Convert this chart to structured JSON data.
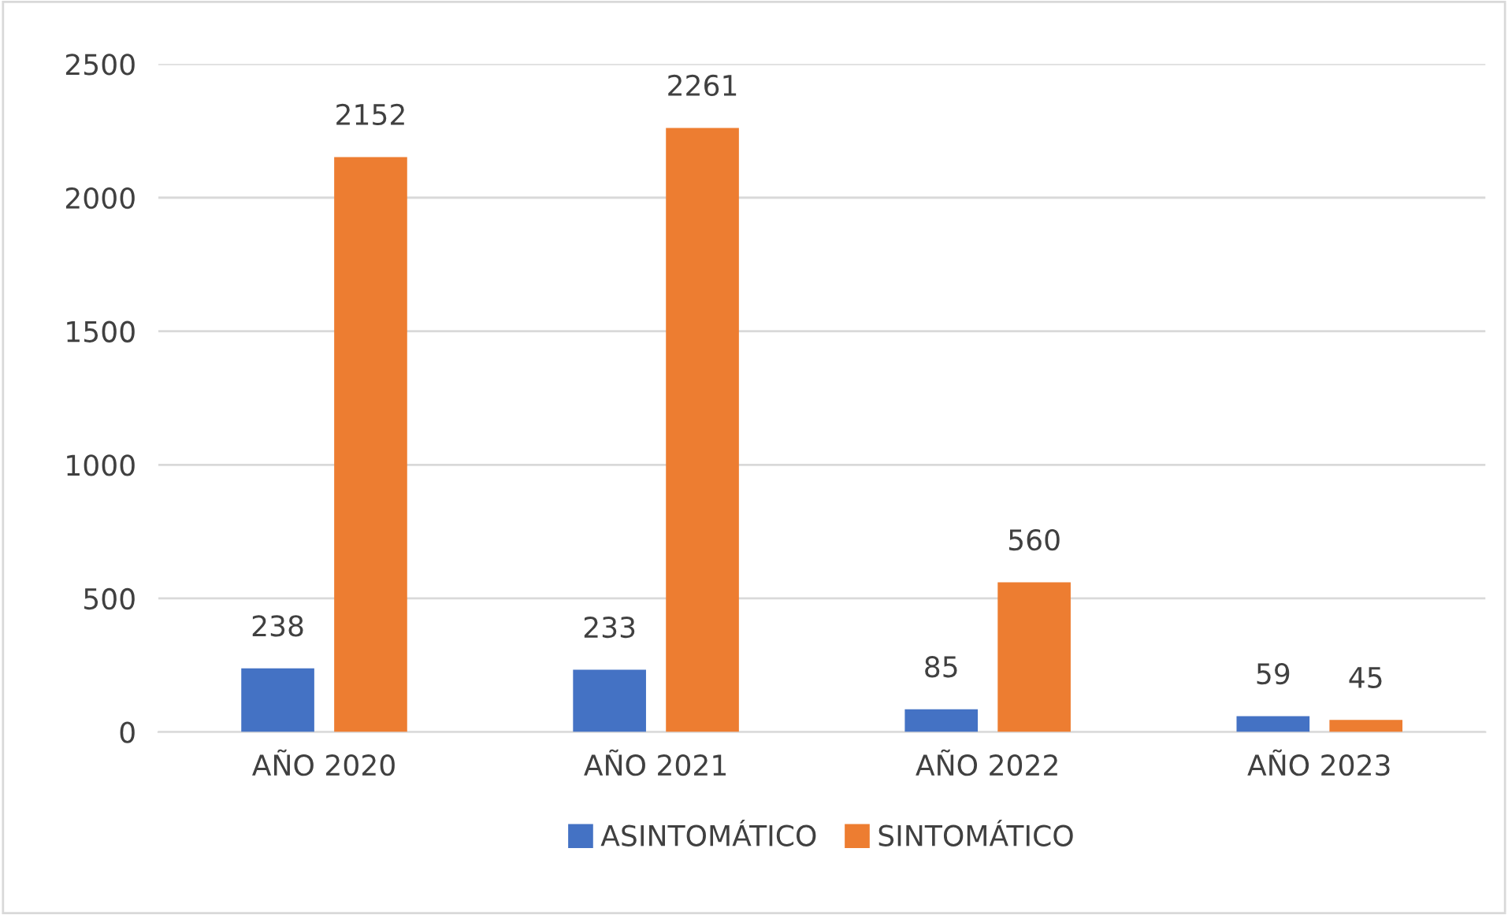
{
  "chart_data": {
    "type": "bar",
    "categories": [
      "AÑO 2020",
      "AÑO 2021",
      "AÑO 2022",
      "AÑO 2023"
    ],
    "series": [
      {
        "name": "ASINTOMÁTICO",
        "color": "#4472c4",
        "values": [
          238,
          233,
          85,
          59
        ]
      },
      {
        "name": "SINTOMÁTICO",
        "color": "#ed7d31",
        "values": [
          2152,
          2261,
          560,
          45
        ]
      }
    ],
    "ylim": [
      0,
      2500
    ],
    "yticks": [
      0,
      500,
      1000,
      1500,
      2000,
      2500
    ],
    "grid": "y",
    "legend": "bottom",
    "data_labels": true
  }
}
